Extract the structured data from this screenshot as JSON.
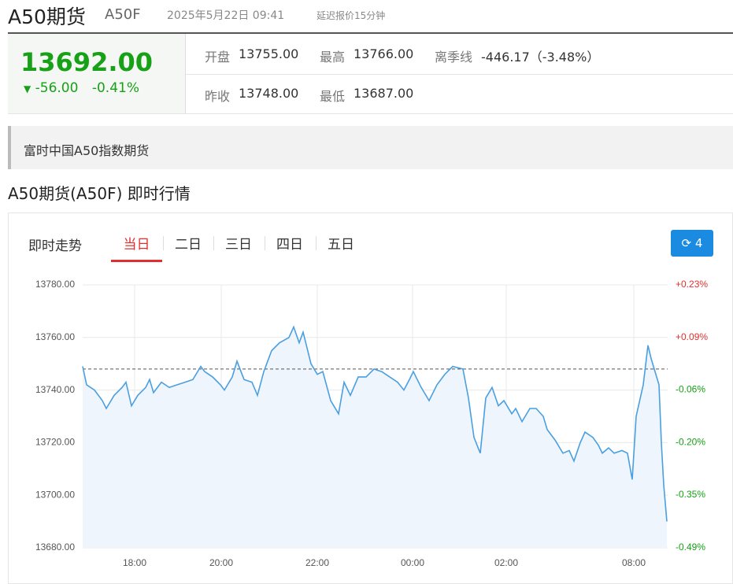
{
  "header": {
    "title": "A50期货",
    "code": "A50F",
    "datetime": "2025年5月22日 09:41",
    "delay": "延迟报价15分钟"
  },
  "quote": {
    "price": "13692.00",
    "change": "-56.00",
    "change_pct": "-0.41%",
    "fields": [
      {
        "label": "开盘",
        "value": "13755.00"
      },
      {
        "label": "最高",
        "value": "13766.00"
      },
      {
        "label": "离季线",
        "value": "-446.17（-3.48%）"
      },
      {
        "label": "昨收",
        "value": "13748.00"
      },
      {
        "label": "最低",
        "value": "13687.00"
      }
    ]
  },
  "description": "富时中国A50指数期货",
  "section_title": "A50期货(A50F) 即时行情",
  "tabs": {
    "label": "即时走势",
    "items": [
      "当日",
      "二日",
      "三日",
      "四日",
      "五日"
    ],
    "refresh": "4"
  },
  "chart_data": {
    "type": "line",
    "color": "#4a9fe0",
    "area_color": "#eef5fc",
    "baseline": 13748,
    "x": [
      0,
      5,
      15,
      25,
      30,
      40,
      50,
      55,
      62,
      70,
      80,
      85,
      90,
      100,
      110,
      120,
      130,
      140,
      150,
      155,
      165,
      175,
      180,
      190,
      196,
      205,
      215,
      222,
      230,
      240,
      250,
      262,
      268,
      275,
      280,
      290,
      298,
      305,
      315,
      325,
      332,
      340,
      350,
      360,
      370,
      380,
      390,
      400,
      408,
      415,
      420,
      430,
      440,
      450,
      460,
      470,
      483,
      490,
      497,
      505,
      512,
      520,
      528,
      535,
      545,
      550,
      558,
      568,
      576,
      585,
      590,
      600,
      610,
      618,
      624,
      632,
      638,
      648,
      655,
      660,
      668,
      675,
      685,
      692,
      698,
      703,
      712,
      718,
      722,
      728,
      732,
      735,
      738,
      742
    ],
    "values": [
      13749,
      13742,
      13740,
      13736,
      13733,
      13738,
      13741,
      13743,
      13734,
      13738,
      13741,
      13744,
      13739,
      13743,
      13741,
      13742,
      13743,
      13744,
      13749,
      13747,
      13745,
      13742,
      13740,
      13745,
      13751,
      13744,
      13743,
      13738,
      13747,
      13755,
      13758,
      13760,
      13764,
      13758,
      13762,
      13750,
      13746,
      13747,
      13736,
      13731,
      13743,
      13738,
      13745,
      13745,
      13748,
      13747,
      13745,
      13743,
      13740,
      13744,
      13747,
      13741,
      13736,
      13742,
      13746,
      13749,
      13748,
      13737,
      13722,
      13716,
      13737,
      13741,
      13734,
      13736,
      13731,
      13733,
      13728,
      13733,
      13733,
      13730,
      13725,
      13721,
      13716,
      13717,
      13713,
      13720,
      13724,
      13722,
      13719,
      13716,
      13718,
      13716,
      13717,
      13716,
      13706,
      13730,
      13742,
      13757,
      13752,
      13746,
      13742,
      13720,
      13704,
      13690
    ],
    "xlim": [
      0,
      743
    ],
    "xticks": [
      {
        "value": 66,
        "label": "18:00"
      },
      {
        "value": 176,
        "label": "20:00"
      },
      {
        "value": 298,
        "label": "22:00"
      },
      {
        "value": 419,
        "label": "00:00"
      },
      {
        "value": 538,
        "label": "02:00"
      },
      {
        "value": 700,
        "label": "08:00"
      }
    ],
    "ylim": [
      13680,
      13780
    ],
    "yticks": [
      {
        "value": 13680,
        "label": "13680.00"
      },
      {
        "value": 13700,
        "label": "13700.00"
      },
      {
        "value": 13720,
        "label": "13720.00"
      },
      {
        "value": 13740,
        "label": "13740.00"
      },
      {
        "value": 13760,
        "label": "13760.00"
      },
      {
        "value": 13780,
        "label": "13780.00"
      }
    ],
    "y2lim": [
      -0.495,
      0.233
    ],
    "y2ticks": [
      {
        "value": -0.495,
        "label": "-0.49%"
      },
      {
        "value": -0.349,
        "label": "-0.35%"
      },
      {
        "value": -0.204,
        "label": "-0.20%"
      },
      {
        "value": -0.058,
        "label": "-0.06%"
      },
      {
        "value": 0.087,
        "label": "+0.09%"
      },
      {
        "value": 0.233,
        "label": "+0.23%"
      }
    ],
    "grid": true
  }
}
